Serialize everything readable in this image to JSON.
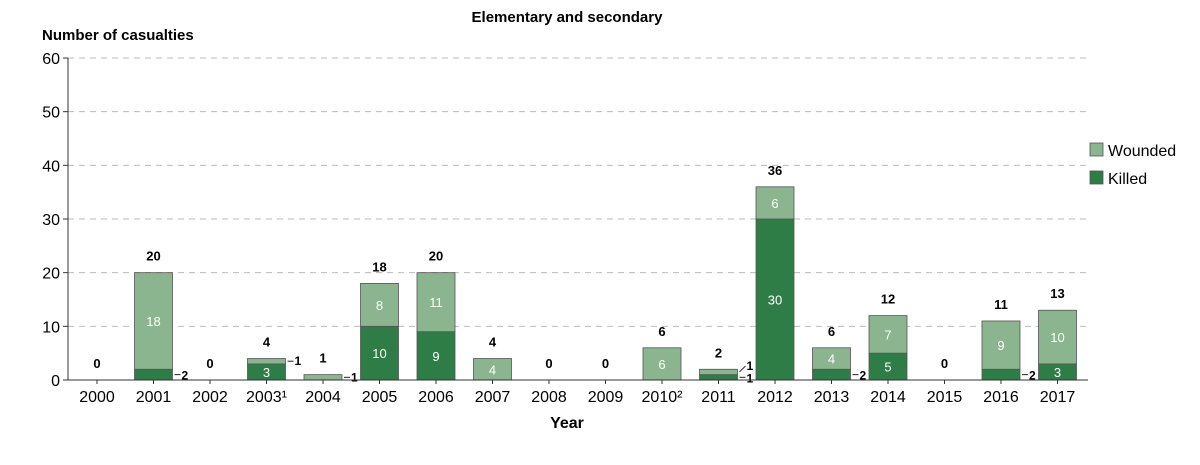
{
  "chart_data": {
    "type": "bar",
    "stacked": true,
    "title": "Elementary and secondary",
    "ylabel": "Number of casualties",
    "xlabel": "Year",
    "ylim": [
      0,
      60
    ],
    "yticks": [
      0,
      10,
      20,
      30,
      40,
      50,
      60
    ],
    "grid": "dashed horizontal",
    "legend_position": "right",
    "categories": [
      "2000",
      "2001",
      "2002",
      "2003¹",
      "2004",
      "2005",
      "2006",
      "2007",
      "2008",
      "2009",
      "2010²",
      "2011",
      "2012",
      "2013",
      "2014",
      "2015",
      "2016",
      "2017"
    ],
    "series": [
      {
        "name": "Killed",
        "color": "#2e7d46",
        "values": [
          0,
          2,
          0,
          3,
          0,
          10,
          9,
          0,
          0,
          0,
          0,
          1,
          30,
          2,
          5,
          0,
          2,
          3
        ]
      },
      {
        "name": "Wounded",
        "color": "#8ab58f",
        "values": [
          0,
          18,
          0,
          1,
          1,
          8,
          11,
          4,
          0,
          0,
          6,
          1,
          6,
          4,
          7,
          0,
          9,
          10
        ]
      }
    ],
    "totals": [
      0,
      20,
      0,
      4,
      1,
      18,
      20,
      4,
      0,
      0,
      6,
      2,
      36,
      6,
      12,
      0,
      11,
      13
    ],
    "legend_order": [
      "Wounded",
      "Killed"
    ]
  }
}
